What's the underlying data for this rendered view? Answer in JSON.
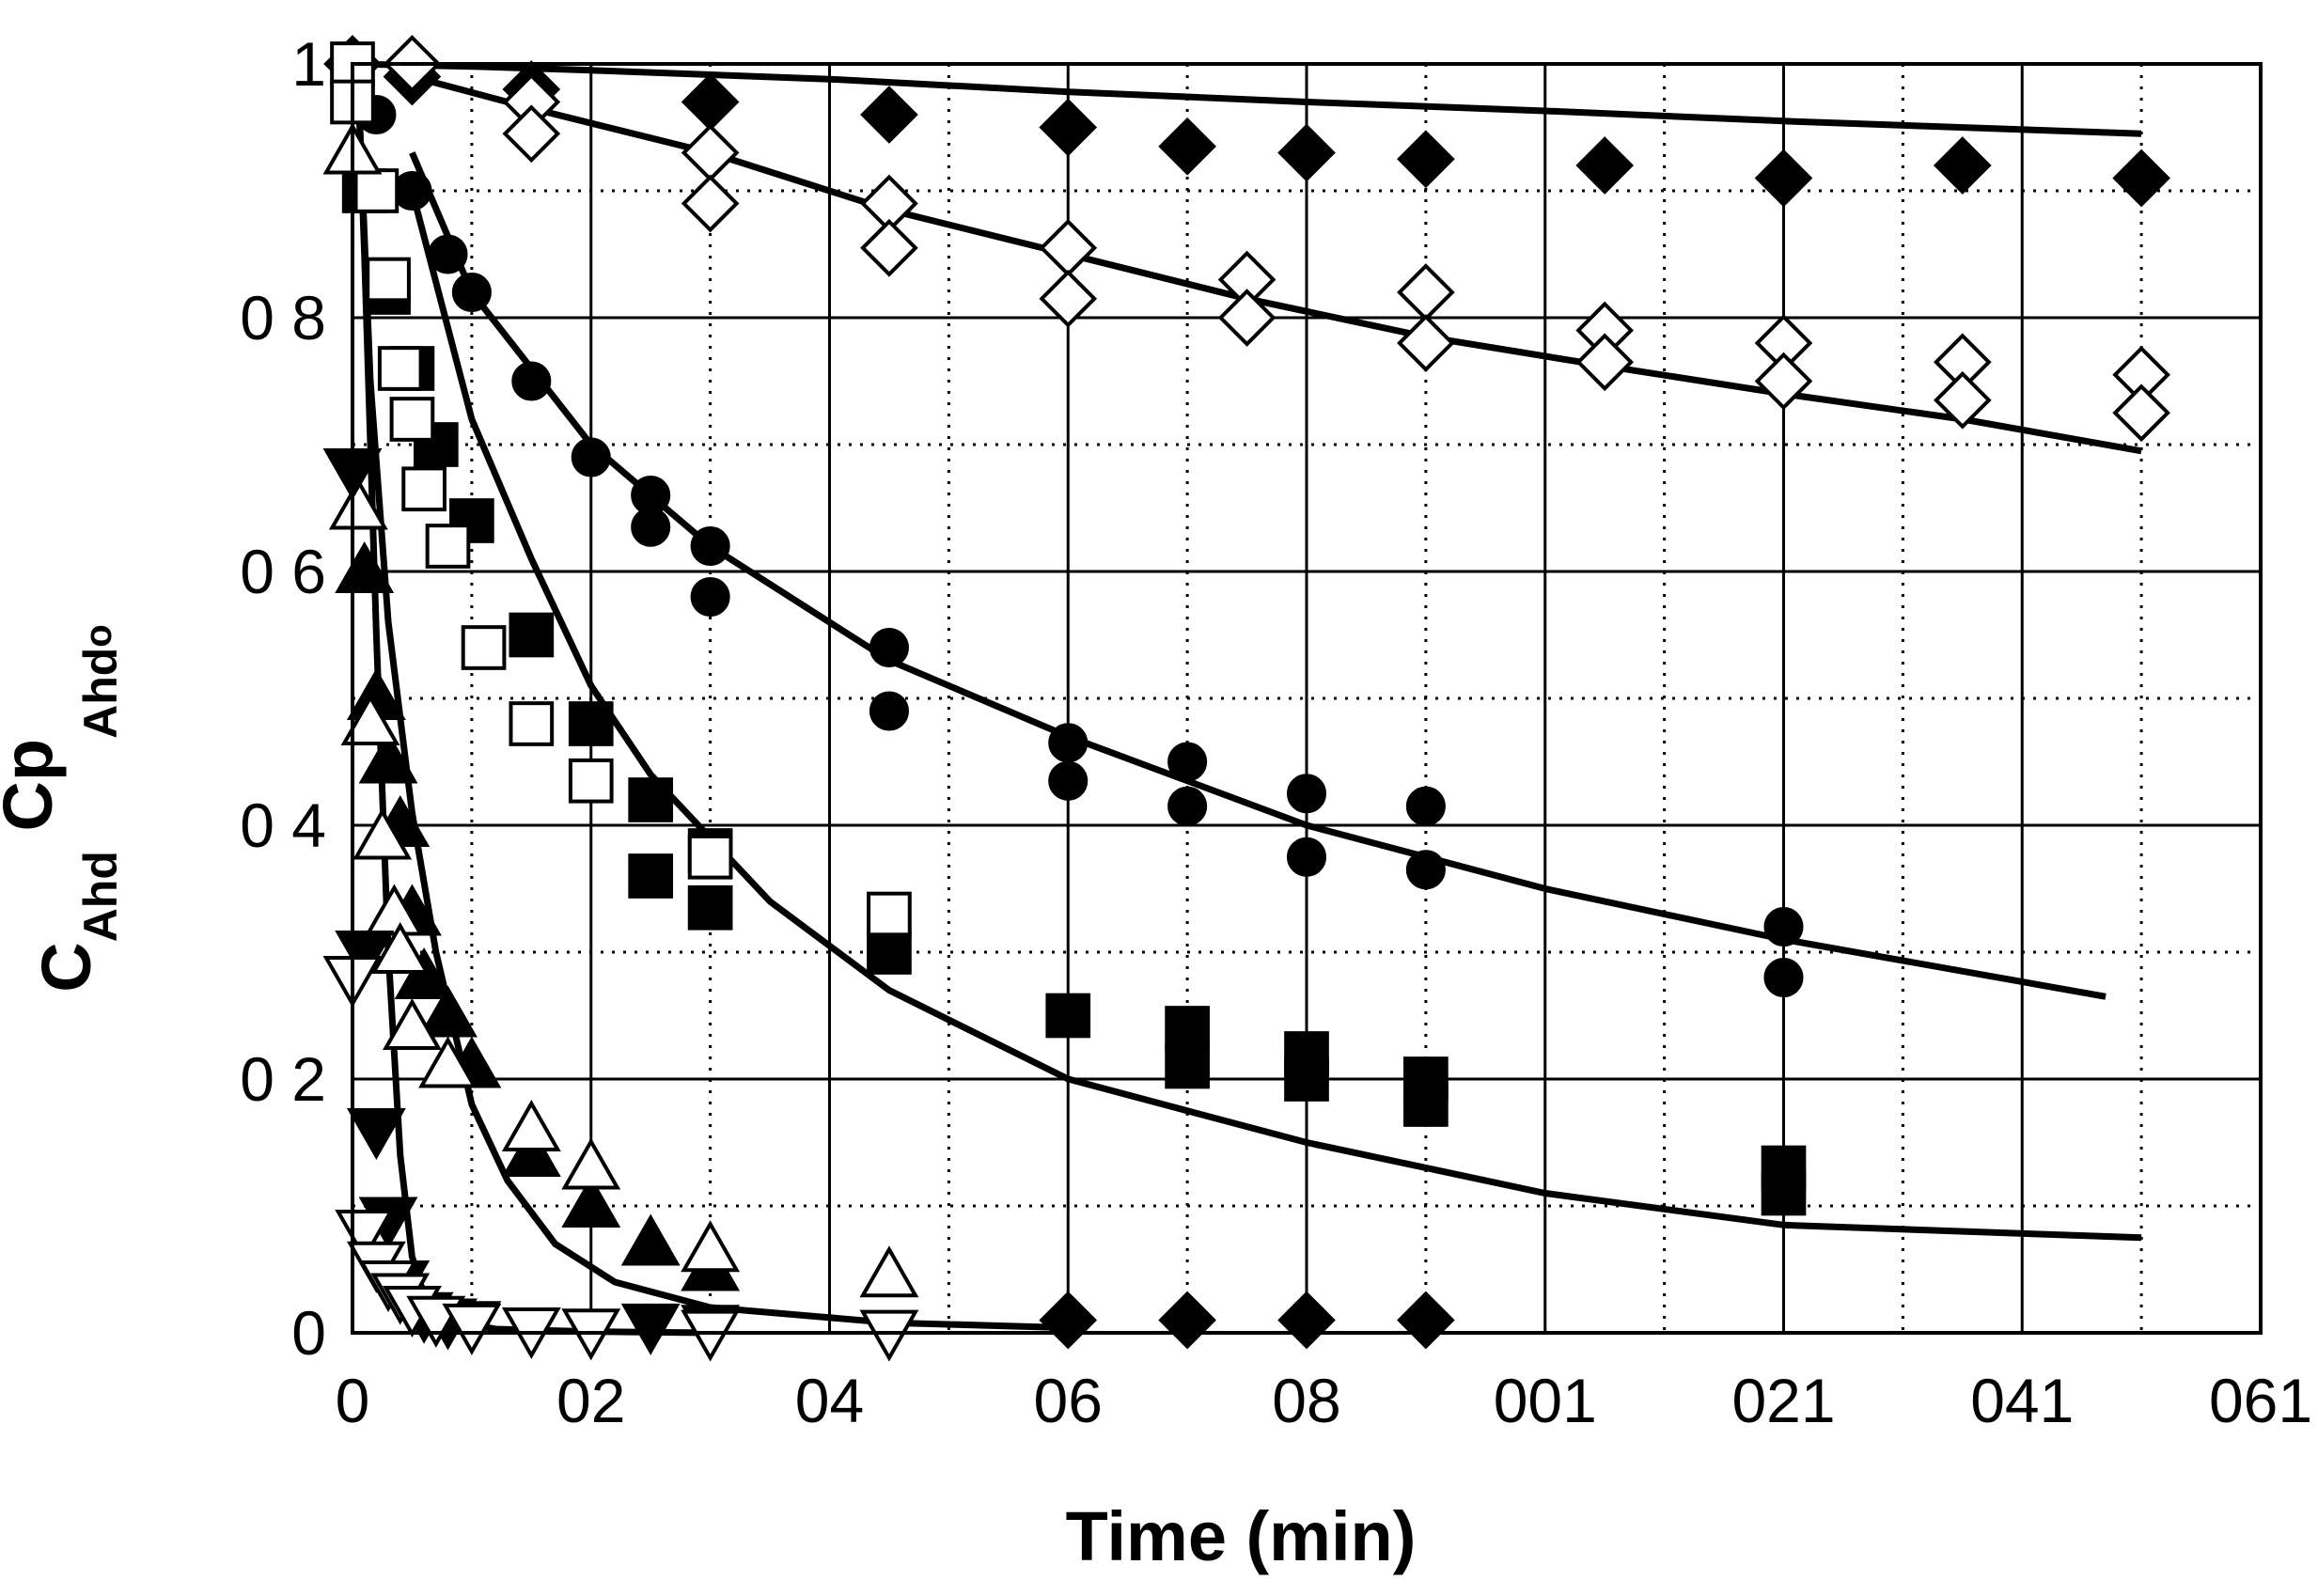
{
  "chart_data": {
    "type": "scatter",
    "title": "",
    "xlabel": "Time (min)",
    "ylabel": "C_Ahd C_po / C_Ahd_o",
    "ylabel_main": "C",
    "ylabel_sub": "Ahd",
    "ylabel_mid": " Cp",
    "ylabel_sub2": "Ahd",
    "ylabel_subsub": "o",
    "xlim": [
      0,
      160
    ],
    "ylim": [
      0,
      1
    ],
    "x_ticks": [
      {
        "value": 0,
        "label": "0"
      },
      {
        "value": 20,
        "label": "02"
      },
      {
        "value": 40,
        "label": "04"
      },
      {
        "value": 60,
        "label": "06"
      },
      {
        "value": 80,
        "label": "08"
      },
      {
        "value": 100,
        "label": "001"
      },
      {
        "value": 120,
        "label": "021"
      },
      {
        "value": 140,
        "label": "041"
      },
      {
        "value": 160,
        "label": "061"
      }
    ],
    "y_ticks": [
      {
        "value": 0,
        "label": "0"
      },
      {
        "value": 0.2,
        "label": "0 2"
      },
      {
        "value": 0.4,
        "label": "0 4"
      },
      {
        "value": 0.6,
        "label": "0 6"
      },
      {
        "value": 0.8,
        "label": "0 8"
      },
      {
        "value": 1,
        "label": "1"
      }
    ],
    "grid": "solid at major ticks, dotted at half ticks",
    "colors": {
      "ink": "#000000",
      "background": "#ffffff"
    },
    "series": [
      {
        "name": "filled diamond",
        "marker": "diamond",
        "filled": true,
        "x": [
          0,
          5,
          15,
          30,
          45,
          60,
          70,
          80,
          90,
          105,
          120,
          135,
          150
        ],
        "y": [
          1.0,
          0.99,
          0.98,
          0.97,
          0.96,
          0.95,
          0.935,
          0.93,
          0.925,
          0.92,
          0.91,
          0.92,
          0.91
        ]
      },
      {
        "name": "open diamond",
        "marker": "diamond",
        "filled": false,
        "x": [
          5,
          15,
          15,
          30,
          30,
          45,
          45,
          60,
          60,
          75,
          75,
          90,
          90,
          105,
          105,
          120,
          120,
          135,
          135,
          150,
          150
        ],
        "y": [
          1.0,
          0.97,
          0.945,
          0.93,
          0.89,
          0.89,
          0.855,
          0.855,
          0.815,
          0.83,
          0.8,
          0.82,
          0.78,
          0.79,
          0.765,
          0.78,
          0.75,
          0.765,
          0.735,
          0.755,
          0.725
        ]
      },
      {
        "name": "filled circle",
        "marker": "circle",
        "filled": true,
        "x": [
          2,
          5,
          8,
          10,
          15,
          20,
          25,
          25,
          30,
          30,
          45,
          45,
          60,
          60,
          70,
          70,
          80,
          80,
          90,
          90,
          120,
          120
        ],
        "y": [
          0.96,
          0.9,
          0.85,
          0.82,
          0.75,
          0.69,
          0.66,
          0.635,
          0.62,
          0.58,
          0.54,
          0.49,
          0.465,
          0.435,
          0.45,
          0.415,
          0.425,
          0.375,
          0.415,
          0.365,
          0.32,
          0.28
        ]
      },
      {
        "name": "filled square",
        "marker": "square",
        "filled": true,
        "x": [
          1,
          3,
          5,
          7,
          10,
          15,
          20,
          25,
          25,
          30,
          30,
          45,
          60,
          70,
          70,
          80,
          80,
          90,
          90,
          120,
          120
        ],
        "y": [
          0.9,
          0.82,
          0.76,
          0.7,
          0.64,
          0.55,
          0.48,
          0.42,
          0.36,
          0.38,
          0.335,
          0.3,
          0.25,
          0.24,
          0.21,
          0.22,
          0.2,
          0.2,
          0.18,
          0.13,
          0.11
        ]
      },
      {
        "name": "open square",
        "marker": "square",
        "filled": false,
        "x": [
          0,
          0,
          2,
          3,
          4,
          5,
          6,
          8,
          11,
          15,
          20,
          30,
          45
        ],
        "y": [
          1.0,
          0.97,
          0.9,
          0.83,
          0.76,
          0.72,
          0.665,
          0.62,
          0.54,
          0.48,
          0.435,
          0.375,
          0.33
        ]
      },
      {
        "name": "filled triangle up",
        "marker": "triangle-up",
        "filled": true,
        "x": [
          1,
          2,
          3,
          4,
          5,
          6,
          8,
          10,
          15,
          20,
          25,
          30
        ],
        "y": [
          0.6,
          0.5,
          0.45,
          0.4,
          0.33,
          0.28,
          0.25,
          0.21,
          0.14,
          0.1,
          0.07,
          0.05
        ]
      },
      {
        "name": "open triangle up",
        "marker": "triangle-up",
        "filled": false,
        "x": [
          0,
          0.5,
          1.5,
          2.5,
          3.5,
          4,
          5,
          8,
          15,
          20,
          30,
          45
        ],
        "y": [
          0.93,
          0.65,
          0.48,
          0.39,
          0.33,
          0.3,
          0.24,
          0.21,
          0.16,
          0.13,
          0.065,
          0.045
        ]
      },
      {
        "name": "filled triangle down",
        "marker": "triangle-down",
        "filled": true,
        "x": [
          0,
          1,
          2,
          3,
          4,
          6,
          8,
          10,
          25,
          30
        ],
        "y": [
          0.68,
          0.3,
          0.16,
          0.09,
          0.04,
          0.015,
          0.01,
          0.008,
          0.006,
          0.005
        ]
      },
      {
        "name": "open triangle down",
        "marker": "triangle-down",
        "filled": false,
        "x": [
          0,
          1,
          2,
          3,
          4,
          5,
          7,
          10,
          15,
          20,
          30,
          45
        ],
        "y": [
          0.28,
          0.08,
          0.055,
          0.04,
          0.03,
          0.02,
          0.012,
          0.006,
          0.003,
          0.002,
          0.001,
          0.001
        ]
      },
      {
        "name": "filled diamond (small)",
        "marker": "diamond",
        "filled": true,
        "x": [
          60,
          70,
          80,
          90
        ],
        "y": [
          0.01,
          0.01,
          0.01,
          0.01
        ]
      }
    ],
    "fits": [
      {
        "name": "fit A",
        "x": [
          0,
          10,
          20,
          40,
          60,
          80,
          100,
          120,
          150
        ],
        "y": [
          1.0,
          0.998,
          0.995,
          0.988,
          0.978,
          0.97,
          0.963,
          0.955,
          0.945
        ]
      },
      {
        "name": "fit B",
        "x": [
          5,
          15,
          30,
          45,
          60,
          75,
          90,
          105,
          120,
          135,
          150
        ],
        "y": [
          0.99,
          0.965,
          0.93,
          0.885,
          0.85,
          0.815,
          0.785,
          0.762,
          0.74,
          0.72,
          0.695
        ]
      },
      {
        "name": "fit C",
        "x": [
          5,
          10,
          20,
          30,
          45,
          60,
          80,
          100,
          120,
          147
        ],
        "y": [
          0.93,
          0.82,
          0.7,
          0.62,
          0.53,
          0.47,
          0.4,
          0.35,
          0.31,
          0.265
        ]
      },
      {
        "name": "fit D",
        "x": [
          5,
          10,
          15,
          20,
          25,
          30,
          35,
          45,
          60,
          80,
          100,
          120,
          150
        ],
        "y": [
          0.9,
          0.72,
          0.61,
          0.51,
          0.44,
          0.39,
          0.34,
          0.27,
          0.2,
          0.15,
          0.11,
          0.085,
          0.075
        ]
      },
      {
        "name": "fit E",
        "x": [
          0.5,
          1.5,
          3,
          5,
          7,
          10,
          13,
          17,
          22,
          30,
          45,
          60
        ],
        "y": [
          0.98,
          0.75,
          0.56,
          0.41,
          0.3,
          0.18,
          0.12,
          0.07,
          0.04,
          0.02,
          0.008,
          0.004
        ]
      },
      {
        "name": "fit F",
        "x": [
          0.5,
          1,
          2,
          3,
          4,
          5,
          6,
          8,
          12,
          20,
          30
        ],
        "y": [
          0.98,
          0.85,
          0.55,
          0.3,
          0.14,
          0.06,
          0.03,
          0.01,
          0.003,
          0.001,
          0
        ]
      }
    ]
  }
}
